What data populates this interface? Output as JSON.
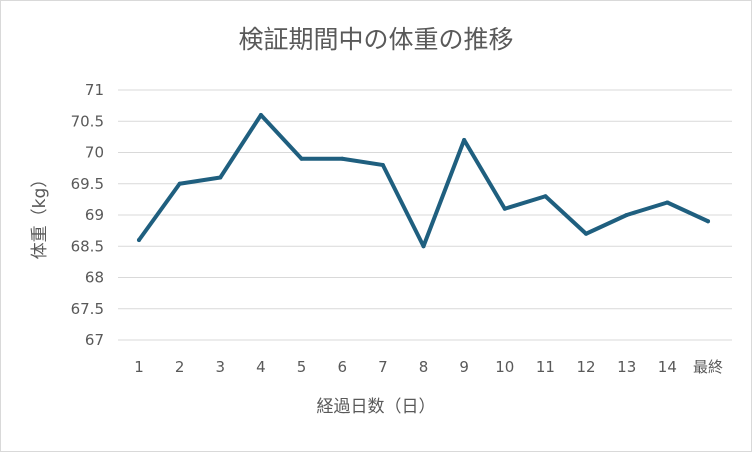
{
  "chart_data": {
    "type": "line",
    "title": "検証期間中の体重の推移",
    "xlabel": "経過日数（日）",
    "ylabel": "体重（kg）",
    "categories": [
      "1",
      "2",
      "3",
      "4",
      "5",
      "6",
      "7",
      "8",
      "9",
      "10",
      "11",
      "12",
      "13",
      "14",
      "最終"
    ],
    "series": [
      {
        "values": [
          68.6,
          69.5,
          69.6,
          70.6,
          69.9,
          69.9,
          69.8,
          68.5,
          70.2,
          69.1,
          69.3,
          68.7,
          69.0,
          69.2,
          68.9
        ]
      }
    ],
    "ylim": [
      67,
      71
    ],
    "yticks": [
      "67",
      "67.5",
      "68",
      "68.5",
      "69",
      "69.5",
      "70",
      "70.5",
      "71"
    ],
    "grid": true,
    "legend": "none",
    "line_color": "#1f5f7f"
  }
}
